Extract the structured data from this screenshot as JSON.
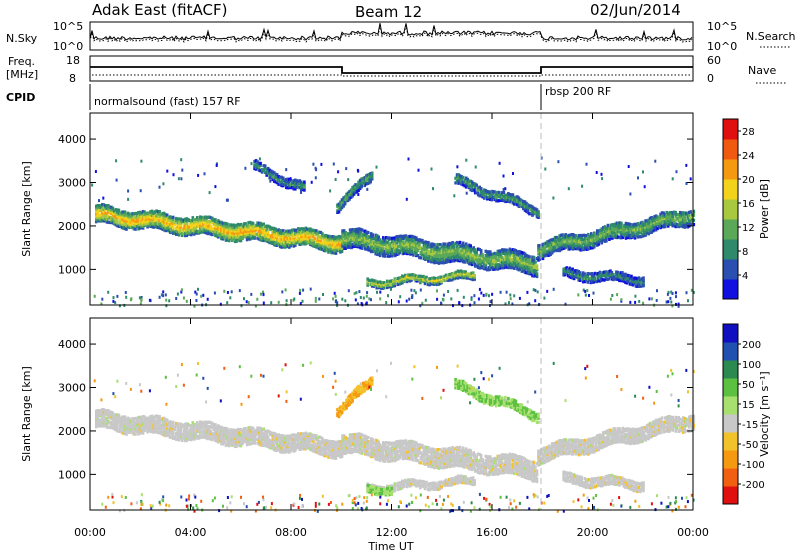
{
  "header": {
    "station": "Adak East (fitACF)",
    "beam": "Beam 12",
    "date": "02/Jun/2014"
  },
  "strip_panels": {
    "nsky": {
      "label": "N.Sky",
      "ticks": [
        "10^5",
        "10^0"
      ]
    },
    "nsearch": {
      "label": "N.Search",
      "ticks": [
        "10^5",
        "10^0"
      ]
    },
    "freq": {
      "label_line1": "Freq.",
      "label_line2": "[MHz]",
      "ticks": [
        "18",
        "8"
      ]
    },
    "nave": {
      "label": "Nave",
      "ticks": [
        "60",
        "0"
      ]
    },
    "cpid": {
      "label": "CPID",
      "segments": [
        "normalsound (fast) 157 RF",
        "rbsp 200 RF"
      ]
    }
  },
  "chart_data": [
    {
      "type": "heatmap",
      "name": "Power",
      "xlabel": "",
      "ylabel": "Slant Range [km]",
      "xlim_hours": [
        0,
        24
      ],
      "ylim": [
        180,
        4600
      ],
      "yticks": [
        "1000",
        "2000",
        "3000",
        "4000"
      ],
      "colorbar_label": "Power [dB]",
      "colorbar_ticks": [
        "4",
        "8",
        "12",
        "16",
        "20",
        "24",
        "28"
      ],
      "colorbar_range": [
        0,
        30
      ],
      "colors": [
        "#1010e0",
        "#2a4fb0",
        "#2e8a6a",
        "#5aa858",
        "#a8c840",
        "#f2d21a",
        "#f59a10",
        "#f05a10",
        "#e01010"
      ],
      "bands": [
        {
          "x": [
            0.2,
            10.0
          ],
          "y_start": 2300,
          "y_end": 1650,
          "width": 380,
          "level": 18
        },
        {
          "x": [
            10.0,
            17.8
          ],
          "y_start": 1750,
          "y_end": 1150,
          "width": 420,
          "level": 12
        },
        {
          "x": [
            11.0,
            15.3
          ],
          "y_start": 720,
          "y_end": 900,
          "width": 160,
          "level": 15
        },
        {
          "x": [
            17.8,
            24.0
          ],
          "y_start": 1500,
          "y_end": 2300,
          "width": 360,
          "level": 11
        },
        {
          "x": [
            6.5,
            8.5
          ],
          "y_start": 3400,
          "y_end": 2900,
          "width": 200,
          "level": 8
        },
        {
          "x": [
            9.8,
            11.2
          ],
          "y_start": 2500,
          "y_end": 3200,
          "width": 220,
          "level": 10
        },
        {
          "x": [
            14.5,
            17.8
          ],
          "y_start": 3100,
          "y_end": 2400,
          "width": 220,
          "level": 9
        },
        {
          "x": [
            18.8,
            22.0
          ],
          "y_start": 950,
          "y_end": 800,
          "width": 200,
          "level": 8
        }
      ]
    },
    {
      "type": "heatmap",
      "name": "Velocity",
      "xlabel": "Time UT",
      "ylabel": "Slant Range [km]",
      "xlim_hours": [
        0,
        24
      ],
      "ylim": [
        180,
        4600
      ],
      "xticks": [
        "00:00",
        "04:00",
        "08:00",
        "12:00",
        "16:00",
        "20:00",
        "00:00"
      ],
      "yticks": [
        "1000",
        "2000",
        "3000",
        "4000"
      ],
      "colorbar_label": "Velocity [m s⁻¹]",
      "colorbar_ticks": [
        "200",
        "100",
        "50",
        "15",
        "-15",
        "-50",
        "-100",
        "-200"
      ],
      "colors": [
        "#1010c0",
        "#2050b0",
        "#2a8a50",
        "#5cc040",
        "#a8e070",
        "#c8c8c8",
        "#f2c22a",
        "#f59a10",
        "#f06010",
        "#e01010"
      ],
      "bands": [
        {
          "x": [
            0.2,
            10.0
          ],
          "y_start": 2300,
          "y_end": 1650,
          "width": 380,
          "class": "ground"
        },
        {
          "x": [
            10.0,
            17.8
          ],
          "y_start": 1750,
          "y_end": 1150,
          "width": 420,
          "class": "ground"
        },
        {
          "x": [
            11.0,
            15.3
          ],
          "y_start": 720,
          "y_end": 900,
          "width": 160,
          "class": "ground"
        },
        {
          "x": [
            11.0,
            12.0
          ],
          "y_start": 700,
          "y_end": 700,
          "width": 160,
          "class": "green"
        },
        {
          "x": [
            17.8,
            24.0
          ],
          "y_start": 1500,
          "y_end": 2300,
          "width": 360,
          "class": "ground"
        },
        {
          "x": [
            9.8,
            11.2
          ],
          "y_start": 2500,
          "y_end": 3200,
          "width": 220,
          "class": "orange"
        },
        {
          "x": [
            14.5,
            17.8
          ],
          "y_start": 3100,
          "y_end": 2400,
          "width": 220,
          "class": "green"
        },
        {
          "x": [
            18.8,
            22.0
          ],
          "y_start": 950,
          "y_end": 800,
          "width": 200,
          "class": "ground"
        }
      ]
    }
  ]
}
